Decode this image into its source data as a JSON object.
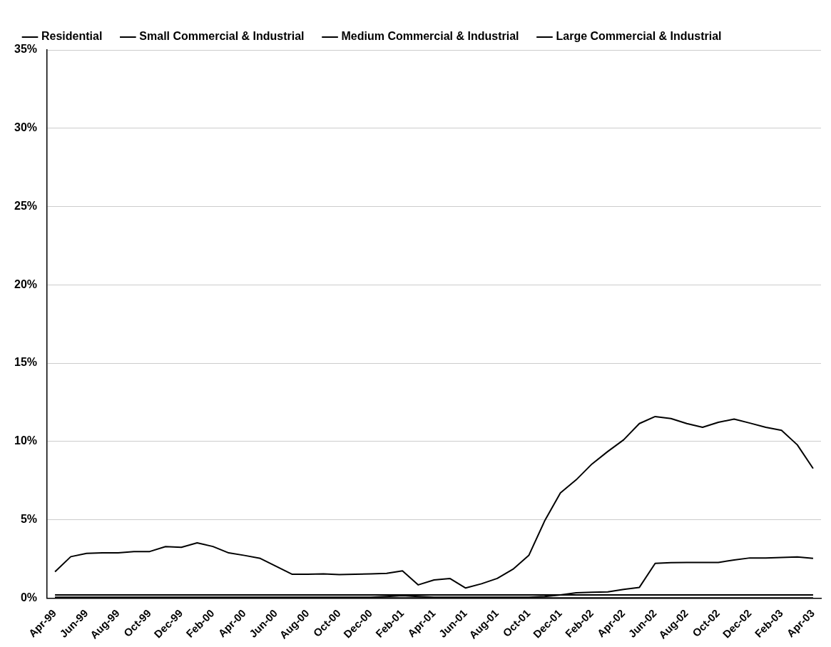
{
  "chart_data": {
    "type": "line",
    "categories": [
      "Apr-99",
      null,
      "Jun-99",
      null,
      "Aug-99",
      null,
      "Oct-99",
      null,
      "Dec-99",
      null,
      "Feb-00",
      null,
      "Apr-00",
      null,
      "Jun-00",
      null,
      "Aug-00",
      null,
      "Oct-00",
      null,
      "Dec-00",
      null,
      "Feb-01",
      null,
      "Apr-01",
      null,
      "Jun-01",
      null,
      "Aug-01",
      null,
      "Oct-01",
      null,
      "Dec-01",
      null,
      "Feb-02",
      null,
      "Apr-02",
      null,
      "Jun-02",
      null,
      "Aug-02",
      null,
      "Oct-02",
      null,
      "Dec-02",
      null,
      "Feb-03",
      null,
      "Apr-03"
    ],
    "series": [
      {
        "name": "Residential",
        "color": "#000000",
        "values": [
          0.2,
          0.2,
          0.2,
          0.2,
          0.2,
          0.2,
          0.2,
          0.2,
          0.2,
          0.2,
          0.2,
          0.2,
          0.2,
          0.2,
          0.2,
          0.2,
          0.2,
          0.2,
          0.2,
          0.2,
          0.2,
          0.2,
          0.2,
          0.2,
          0.2,
          0.2,
          0.2,
          0.2,
          0.2,
          0.2,
          0.2,
          0.2,
          0.2,
          0.2,
          0.2,
          0.2,
          0.2,
          0.2,
          0.2,
          0.2,
          0.2,
          0.2,
          0.2,
          0.2,
          0.2,
          0.2,
          0.2,
          0.2,
          0.2
        ]
      },
      {
        "name": "Small Commercial & Industrial",
        "color": "#000000",
        "values": [
          0,
          0,
          0,
          0,
          0,
          0,
          0,
          0,
          0,
          0,
          0,
          0,
          0,
          0,
          0,
          0,
          0,
          0,
          0,
          0,
          0,
          0,
          0,
          0,
          0,
          0,
          0,
          0,
          0,
          0,
          0,
          0,
          0,
          0,
          0,
          0,
          0,
          0,
          0,
          0,
          0,
          0,
          0,
          0,
          0,
          0,
          0,
          0,
          0
        ]
      },
      {
        "name": "Medium Commercial & Industrial",
        "color": "#000000",
        "values": [
          0.05,
          0.05,
          0.05,
          0.05,
          0.05,
          0.05,
          0.05,
          0.05,
          0.05,
          0.05,
          0.05,
          0.05,
          0.05,
          0.05,
          0.05,
          0.05,
          0.05,
          0.05,
          0.05,
          0.05,
          0.05,
          0.1,
          0.15,
          0.1,
          0.05,
          0.05,
          0.05,
          0.05,
          0.05,
          0.05,
          0.05,
          0.09,
          0.2,
          0.33,
          0.37,
          0.39,
          0.55,
          0.68,
          2.21,
          2.26,
          2.27,
          2.27,
          2.27,
          2.43,
          2.56,
          2.56,
          2.59,
          2.62,
          2.53
        ]
      },
      {
        "name": "Large Commercial & Industrial",
        "color": "#000000",
        "values": [
          1.68,
          2.64,
          2.85,
          2.89,
          2.88,
          2.96,
          2.97,
          3.28,
          3.24,
          3.52,
          3.29,
          2.88,
          2.72,
          2.53,
          2.02,
          1.52,
          1.52,
          1.54,
          1.49,
          1.52,
          1.54,
          1.57,
          1.73,
          0.84,
          1.15,
          1.25,
          0.64,
          0.91,
          1.25,
          1.84,
          2.72,
          4.92,
          6.71,
          7.55,
          8.56,
          9.36,
          10.1,
          11.14,
          11.59,
          11.46,
          11.14,
          10.9,
          11.22,
          11.43,
          11.17,
          10.9,
          10.71,
          9.78,
          8.27
        ]
      }
    ],
    "ylim": [
      0,
      35
    ],
    "yticks": [
      {
        "value": 0,
        "label": "0%"
      },
      {
        "value": 5,
        "label": "5%"
      },
      {
        "value": 10,
        "label": "10%"
      },
      {
        "value": 15,
        "label": "15%"
      },
      {
        "value": 20,
        "label": "20%"
      },
      {
        "value": 25,
        "label": "25%"
      },
      {
        "value": 30,
        "label": "30%"
      },
      {
        "value": 35,
        "label": "35%"
      }
    ],
    "grid": "y",
    "legend": "top",
    "marker": "none",
    "line_style": "solid"
  }
}
